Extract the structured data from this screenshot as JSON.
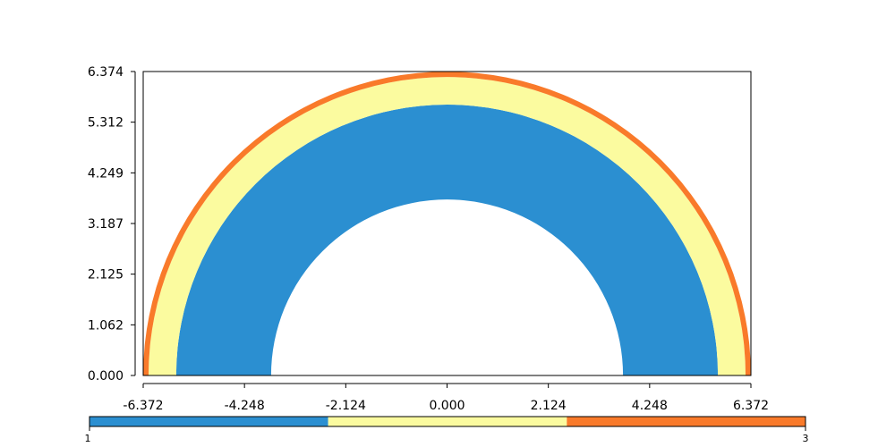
{
  "chart_data": {
    "type": "heatmap",
    "title": "",
    "xlabel": "",
    "ylabel": "",
    "xlim": [
      -6.372,
      6.372
    ],
    "ylim": [
      0.0,
      6.374
    ],
    "xticks": [
      "-6.372",
      "-4.248",
      "-2.124",
      "0.000",
      "2.124",
      "4.248",
      "6.372"
    ],
    "yticks": [
      "0.000",
      "1.062",
      "2.125",
      "3.187",
      "4.249",
      "5.312",
      "6.374"
    ],
    "regions": [
      {
        "value": 1,
        "inner_radius": 3.69,
        "outer_radius": 5.68,
        "color": "#2b8fd1"
      },
      {
        "value": 2,
        "inner_radius": 5.68,
        "outer_radius": 6.26,
        "color": "#fbfb9f"
      },
      {
        "value": 3,
        "inner_radius": 6.26,
        "outer_radius": 6.372,
        "color": "#f97a2a"
      }
    ],
    "colorbar": {
      "min_label": "1",
      "max_label": "3",
      "segments": [
        {
          "value": 1,
          "color": "#2b8fd1"
        },
        {
          "value": 2,
          "color": "#fbfb9f"
        },
        {
          "value": 3,
          "color": "#f97a2a"
        }
      ]
    }
  }
}
